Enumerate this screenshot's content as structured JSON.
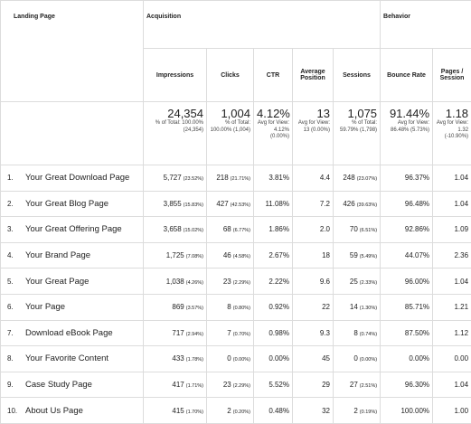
{
  "table": {
    "header": {
      "landing_page": "Landing Page",
      "groups": [
        "Acquisition",
        "Behavior"
      ],
      "columns": [
        "Impressions",
        "Clicks",
        "CTR",
        "Average Position",
        "Sessions",
        "Bounce Rate",
        "Pages / Session"
      ]
    },
    "totals": [
      {
        "value": "24,354",
        "note": "% of Total: 100.00% (24,354)"
      },
      {
        "value": "1,004",
        "note": "% of Total: 100.00% (1,004)"
      },
      {
        "value": "4.12%",
        "note": "Avg for View: 4.12% (0.00%)"
      },
      {
        "value": "13",
        "note": "Avg for View: 13 (0.00%)"
      },
      {
        "value": "1,075",
        "note": "% of Total: 59.79% (1,798)"
      },
      {
        "value": "91.44%",
        "note": "Avg for View: 86.48% (5.73%)"
      },
      {
        "value": "1.18",
        "note": "Avg for View: 1.32 (-10.90%)"
      }
    ],
    "rows": [
      {
        "num": "1.",
        "page": "Your Great Download Page",
        "cells": [
          {
            "value": "5,727",
            "pct": "(23.52%)"
          },
          {
            "value": "218",
            "pct": "(21.71%)"
          },
          {
            "value": "3.81%"
          },
          {
            "value": "4.4"
          },
          {
            "value": "248",
            "pct": "(23.07%)"
          },
          {
            "value": "96.37%"
          },
          {
            "value": "1.04"
          }
        ]
      },
      {
        "num": "2.",
        "page": "Your Great Blog Page",
        "cells": [
          {
            "value": "3,855",
            "pct": "(15.83%)"
          },
          {
            "value": "427",
            "pct": "(42.53%)"
          },
          {
            "value": "11.08%"
          },
          {
            "value": "7.2"
          },
          {
            "value": "426",
            "pct": "(39.63%)"
          },
          {
            "value": "96.48%"
          },
          {
            "value": "1.04"
          }
        ]
      },
      {
        "num": "3.",
        "page": "Your Great Offering Page",
        "cells": [
          {
            "value": "3,658",
            "pct": "(15.02%)"
          },
          {
            "value": "68",
            "pct": "(6.77%)"
          },
          {
            "value": "1.86%"
          },
          {
            "value": "2.0"
          },
          {
            "value": "70",
            "pct": "(6.51%)"
          },
          {
            "value": "92.86%"
          },
          {
            "value": "1.09"
          }
        ]
      },
      {
        "num": "4.",
        "page": "Your Brand Page",
        "cells": [
          {
            "value": "1,725",
            "pct": "(7.08%)"
          },
          {
            "value": "46",
            "pct": "(4.58%)"
          },
          {
            "value": "2.67%"
          },
          {
            "value": "18"
          },
          {
            "value": "59",
            "pct": "(5.49%)"
          },
          {
            "value": "44.07%"
          },
          {
            "value": "2.36"
          }
        ]
      },
      {
        "num": "5.",
        "page": "Your Great Page",
        "cells": [
          {
            "value": "1,038",
            "pct": "(4.26%)"
          },
          {
            "value": "23",
            "pct": "(2.29%)"
          },
          {
            "value": "2.22%"
          },
          {
            "value": "9.6"
          },
          {
            "value": "25",
            "pct": "(2.33%)"
          },
          {
            "value": "96.00%"
          },
          {
            "value": "1.04"
          }
        ]
      },
      {
        "num": "6.",
        "page": "Your Page",
        "cells": [
          {
            "value": "869",
            "pct": "(3.57%)"
          },
          {
            "value": "8",
            "pct": "(0.80%)"
          },
          {
            "value": "0.92%"
          },
          {
            "value": "22"
          },
          {
            "value": "14",
            "pct": "(1.30%)"
          },
          {
            "value": "85.71%"
          },
          {
            "value": "1.21"
          }
        ]
      },
      {
        "num": "7.",
        "page": "Download  eBook Page",
        "cells": [
          {
            "value": "717",
            "pct": "(2.94%)"
          },
          {
            "value": "7",
            "pct": "(0.70%)"
          },
          {
            "value": "0.98%"
          },
          {
            "value": "9.3"
          },
          {
            "value": "8",
            "pct": "(0.74%)"
          },
          {
            "value": "87.50%"
          },
          {
            "value": "1.12"
          }
        ]
      },
      {
        "num": "8.",
        "page": "Your Favorite Content",
        "cells": [
          {
            "value": "433",
            "pct": "(1.78%)"
          },
          {
            "value": "0",
            "pct": "(0.00%)"
          },
          {
            "value": "0.00%"
          },
          {
            "value": "45"
          },
          {
            "value": "0",
            "pct": "(0.00%)"
          },
          {
            "value": "0.00%"
          },
          {
            "value": "0.00"
          }
        ]
      },
      {
        "num": "9.",
        "page": "Case Study Page",
        "cells": [
          {
            "value": "417",
            "pct": "(1.71%)"
          },
          {
            "value": "23",
            "pct": "(2.29%)"
          },
          {
            "value": "5.52%"
          },
          {
            "value": "29"
          },
          {
            "value": "27",
            "pct": "(2.51%)"
          },
          {
            "value": "96.30%"
          },
          {
            "value": "1.04"
          }
        ]
      },
      {
        "num": "10.",
        "page": "About Us Page",
        "cells": [
          {
            "value": "415",
            "pct": "(1.70%)"
          },
          {
            "value": "2",
            "pct": "(0.20%)"
          },
          {
            "value": "0.48%"
          },
          {
            "value": "32"
          },
          {
            "value": "2",
            "pct": "(0.19%)"
          },
          {
            "value": "100.00%"
          },
          {
            "value": "1.00"
          }
        ]
      }
    ]
  }
}
